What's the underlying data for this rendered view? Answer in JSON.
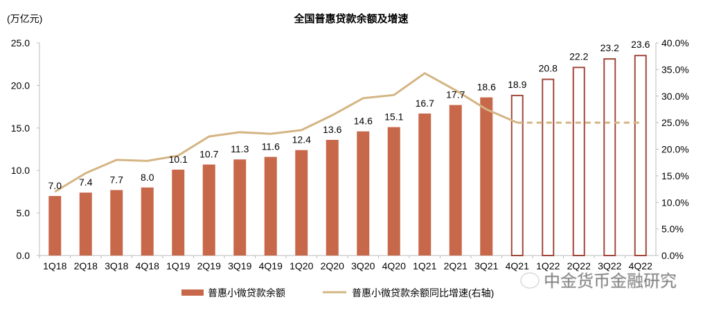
{
  "chart_data": {
    "type": "bar+line",
    "title": "全国普惠贷款余额及增速",
    "ylabel_left": "(万亿元)",
    "categories": [
      "1Q18",
      "2Q18",
      "3Q18",
      "4Q18",
      "1Q19",
      "2Q19",
      "3Q19",
      "4Q19",
      "1Q20",
      "2Q20",
      "3Q20",
      "4Q20",
      "1Q21",
      "2Q21",
      "3Q21",
      "4Q21",
      "1Q22",
      "2Q22",
      "3Q22",
      "4Q22"
    ],
    "left_axis": {
      "range": [
        0,
        25
      ],
      "ticks": [
        "0.0",
        "5.0",
        "10.0",
        "15.0",
        "20.0",
        "25.0"
      ]
    },
    "right_axis": {
      "range": [
        0,
        40
      ],
      "ticks": [
        "0.0%",
        "5.0%",
        "10.0%",
        "15.0%",
        "20.0%",
        "25.0%",
        "30.0%",
        "35.0%",
        "40.0%"
      ]
    },
    "series": [
      {
        "name": "普惠小微贷款余额",
        "type": "bar",
        "axis": "left",
        "color": "#C8684A",
        "values": [
          7.0,
          7.4,
          7.7,
          8.0,
          10.1,
          10.7,
          11.3,
          11.6,
          12.4,
          13.6,
          14.6,
          15.1,
          16.7,
          17.7,
          18.6,
          18.9,
          20.8,
          22.2,
          23.2,
          23.6
        ],
        "labels": [
          "7.0",
          "7.4",
          "7.7",
          "8.0",
          "10.1",
          "10.7",
          "11.3",
          "11.6",
          "12.4",
          "13.6",
          "14.6",
          "15.1",
          "16.7",
          "17.7",
          "18.6",
          "18.9",
          "20.8",
          "22.2",
          "23.2",
          "23.6"
        ],
        "forecast_from": "4Q21"
      },
      {
        "name": "普惠小微贷款余额同比增速(右轴)",
        "type": "line",
        "axis": "right",
        "color": "#D4B483",
        "values": [
          12.0,
          15.5,
          18.0,
          17.8,
          18.8,
          22.4,
          23.2,
          22.9,
          23.6,
          26.4,
          29.6,
          30.2,
          34.3,
          31.1,
          27.5,
          25.0,
          25.0,
          25.0,
          25.0,
          25.0
        ],
        "dashed_from": "4Q21"
      }
    ],
    "legend": {
      "position": "bottom",
      "items": [
        "普惠小微贷款余额",
        "普惠小微贷款余额同比增速(右轴)"
      ]
    },
    "grid": false
  },
  "watermark": "中金货币金融研究"
}
